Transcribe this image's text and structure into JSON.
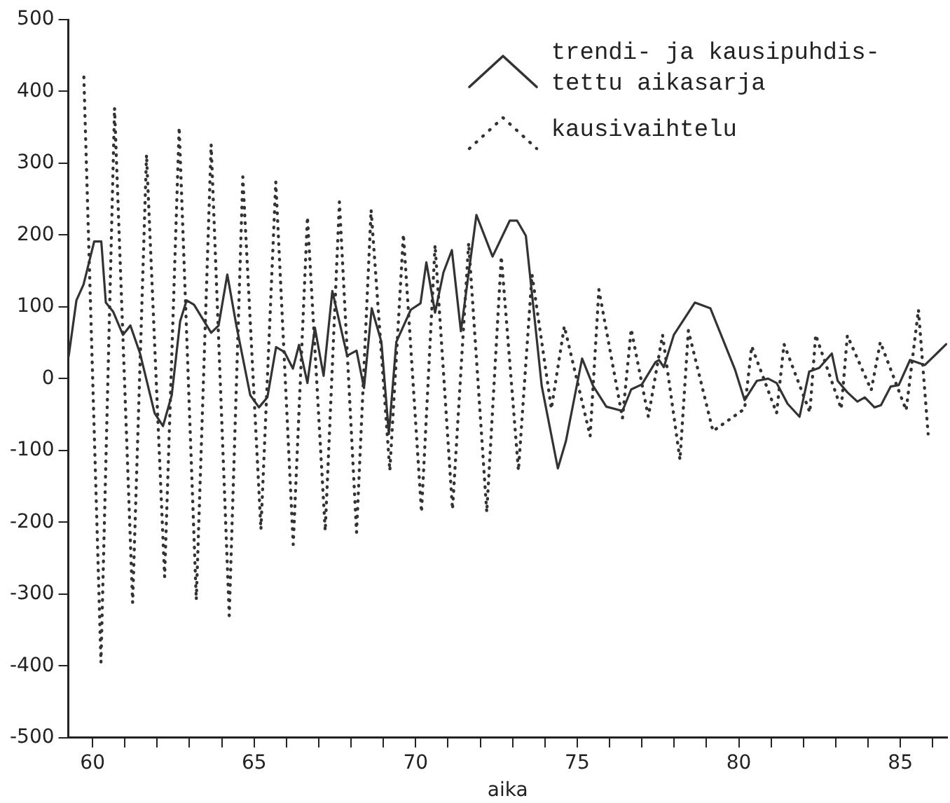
{
  "chart_data": {
    "type": "line",
    "xlabel": "aika",
    "xlim": [
      59.25,
      86.45
    ],
    "xticks": [
      {
        "value": 60,
        "label": "60"
      },
      {
        "value": 61,
        "label": null
      },
      {
        "value": 62,
        "label": null
      },
      {
        "value": 63,
        "label": null
      },
      {
        "value": 64,
        "label": null
      },
      {
        "value": 65,
        "label": "65"
      },
      {
        "value": 66,
        "label": null
      },
      {
        "value": 67,
        "label": null
      },
      {
        "value": 68,
        "label": null
      },
      {
        "value": 69,
        "label": null
      },
      {
        "value": 70,
        "label": "70"
      },
      {
        "value": 71,
        "label": null
      },
      {
        "value": 72,
        "label": null
      },
      {
        "value": 73,
        "label": null
      },
      {
        "value": 74,
        "label": null
      },
      {
        "value": 75,
        "label": "75"
      },
      {
        "value": 76,
        "label": null
      },
      {
        "value": 77,
        "label": null
      },
      {
        "value": 78,
        "label": null
      },
      {
        "value": 79,
        "label": null
      },
      {
        "value": 80,
        "label": "80"
      },
      {
        "value": 81,
        "label": null
      },
      {
        "value": 82,
        "label": null
      },
      {
        "value": 83,
        "label": null
      },
      {
        "value": 84,
        "label": null
      },
      {
        "value": 85,
        "label": "85"
      },
      {
        "value": 86,
        "label": null
      }
    ],
    "ylim": [
      -500,
      500
    ],
    "yticks": [
      -500,
      -400,
      -300,
      -200,
      -100,
      0,
      100,
      200,
      300,
      400,
      500
    ],
    "grid": false,
    "legend": "top right",
    "marker": "none",
    "series": [
      {
        "name": "trendi- ja kausipuhdis-\ntettu aikasarja",
        "color": "#333333",
        "line_style": "solid",
        "x": [
          59.26,
          59.5,
          59.72,
          60.05,
          60.27,
          60.41,
          60.64,
          60.94,
          61.17,
          61.47,
          61.92,
          62.18,
          62.45,
          62.71,
          62.91,
          63.14,
          63.67,
          63.9,
          64.17,
          64.45,
          64.88,
          65.15,
          65.41,
          65.68,
          65.94,
          66.2,
          66.39,
          66.65,
          66.88,
          67.15,
          67.42,
          67.88,
          68.17,
          68.4,
          68.64,
          68.94,
          69.17,
          69.4,
          69.85,
          70.15,
          70.33,
          70.6,
          70.86,
          71.12,
          71.4,
          71.88,
          72.38,
          72.91,
          73.14,
          73.41,
          73.9,
          74.4,
          74.65,
          75.15,
          75.49,
          75.9,
          76.4,
          76.67,
          77.0,
          77.42,
          77.53,
          77.68,
          77.99,
          78.64,
          79.12,
          79.88,
          80.18,
          80.56,
          80.91,
          81.17,
          81.51,
          81.88,
          82.18,
          82.49,
          82.88,
          83.06,
          83.36,
          83.67,
          83.9,
          84.2,
          84.4,
          84.7,
          84.95,
          85.3,
          85.76,
          86.17,
          86.42
        ],
        "values": [
          31,
          109,
          131,
          191,
          191,
          106,
          93,
          61,
          74,
          35,
          -48,
          -66,
          -23,
          80,
          109,
          103,
          64,
          74,
          145,
          74,
          -23,
          -40,
          -26,
          44,
          37,
          14,
          47,
          -6,
          71,
          4,
          122,
          32,
          39,
          -13,
          98,
          51,
          -77,
          51,
          96,
          105,
          162,
          92,
          148,
          179,
          66,
          228,
          170,
          220,
          220,
          199,
          -10,
          -125,
          -87,
          28,
          -10,
          -39,
          -45,
          -15,
          -8,
          23,
          26,
          16,
          61,
          106,
          98,
          13,
          -30,
          -3,
          0,
          -6,
          -35,
          -53,
          10,
          15,
          35,
          -3,
          -19,
          -32,
          -26,
          -40,
          -37,
          -11,
          -9,
          26,
          19,
          37,
          48
        ]
      },
      {
        "name": "kausivaihtelu",
        "color": "#333333",
        "line_style": "dotted",
        "x": [
          59.73,
          60.26,
          60.68,
          61.24,
          61.67,
          62.23,
          62.68,
          63.21,
          63.67,
          64.23,
          64.65,
          65.21,
          65.67,
          66.21,
          66.65,
          67.2,
          67.64,
          68.17,
          68.62,
          69.2,
          69.62,
          70.18,
          70.6,
          71.14,
          71.64,
          72.2,
          72.65,
          73.18,
          73.6,
          74.2,
          74.6,
          75.4,
          75.67,
          76.4,
          76.67,
          77.2,
          77.64,
          78.18,
          78.44,
          79.2,
          80.18,
          80.4,
          81.17,
          81.4,
          82.2,
          82.38,
          83.17,
          83.36,
          84.1,
          84.38,
          85.18,
          85.56,
          85.86
        ],
        "values": [
          420,
          -395,
          377,
          -312,
          312,
          -276,
          350,
          -308,
          326,
          -330,
          281,
          -210,
          274,
          -231,
          225,
          -212,
          246,
          -214,
          235,
          -128,
          201,
          -186,
          186,
          -182,
          189,
          -186,
          170,
          -128,
          145,
          -42,
          73,
          -80,
          124,
          -55,
          69,
          -53,
          61,
          -113,
          67,
          -73,
          -42,
          45,
          -48,
          48,
          -47,
          61,
          -42,
          60,
          -16,
          51,
          -44,
          96,
          -77
        ]
      }
    ]
  }
}
